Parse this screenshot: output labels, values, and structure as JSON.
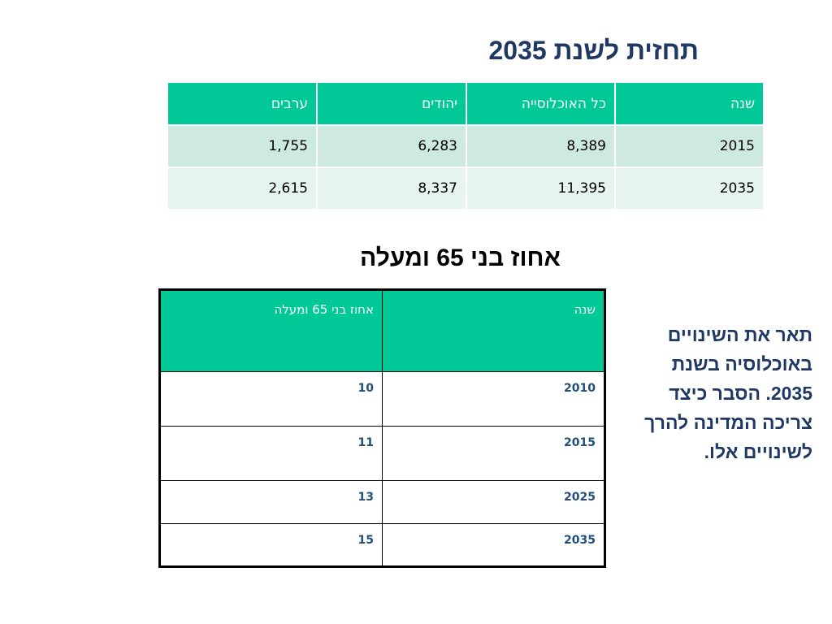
{
  "title1": "תחזית לשנת 2035",
  "table1": {
    "headers": [
      "שנה",
      "כל האוכלוסייה",
      "יהודים",
      "ערבים"
    ],
    "rows": [
      [
        "2015",
        "8,389",
        "6,283",
        "1,755"
      ],
      [
        "2035",
        "11,395",
        "8,337",
        "2,615"
      ]
    ]
  },
  "title2": "אחוז בני 65 ומעלה",
  "table2": {
    "headers": [
      "שנה",
      "אחוז בני 65 ומעלה"
    ],
    "rows": [
      [
        "2010",
        "10"
      ],
      [
        "2015",
        "11"
      ],
      [
        "2025",
        "13"
      ],
      [
        "2035",
        "15"
      ]
    ]
  },
  "side_text": "תאר את השינויים באוכלוסיה בשנת 2035. הסבר כיצד צריכה המדינה להרך לשינויים אלו.",
  "colors": {
    "header_green": "#00c897",
    "row_light_1": "#cde9e0",
    "row_light_2": "#e6f4ef",
    "title_navy": "#1f3864",
    "value_blue": "#1f4e79"
  }
}
